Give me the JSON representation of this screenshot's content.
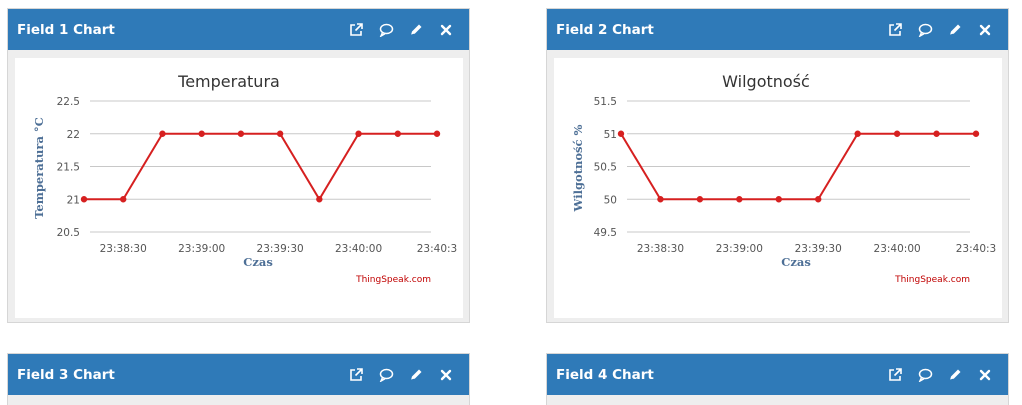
{
  "panels": [
    {
      "title": "Field 1 Chart",
      "chart_data": {
        "type": "line",
        "title": "Temperatura",
        "xlabel": "Czas",
        "ylabel": "Temperatura °C",
        "x": [
          "23:38:15",
          "23:38:30",
          "23:38:45",
          "23:39:00",
          "23:39:15",
          "23:39:30",
          "23:39:45",
          "23:40:00",
          "23:40:15",
          "23:40:30"
        ],
        "y": [
          21,
          21,
          22,
          22,
          22,
          22,
          21,
          22,
          22,
          22
        ],
        "ylim": [
          20.5,
          22.5
        ],
        "yticks": [
          "22.5",
          "22",
          "21.5",
          "21",
          "20.5"
        ],
        "xticks": [
          "23:38:30",
          "23:39:00",
          "23:39:30",
          "23:40:00",
          "23:40:3"
        ],
        "grid": true,
        "color": "#d62020",
        "credit": "ThingSpeak.com"
      }
    },
    {
      "title": "Field 2 Chart",
      "chart_data": {
        "type": "line",
        "title": "Wilgotność",
        "xlabel": "Czas",
        "ylabel": "Wilgotność %",
        "x": [
          "23:38:15",
          "23:38:30",
          "23:38:45",
          "23:39:00",
          "23:39:15",
          "23:39:30",
          "23:39:45",
          "23:40:00",
          "23:40:15",
          "23:40:30"
        ],
        "y": [
          51,
          50,
          50,
          50,
          50,
          50,
          51,
          51,
          51,
          51
        ],
        "ylim": [
          49.5,
          51.5
        ],
        "yticks": [
          "51.5",
          "51",
          "50.5",
          "50",
          "49.5"
        ],
        "xticks": [
          "23:38:30",
          "23:39:00",
          "23:39:30",
          "23:40:00",
          "23:40:3"
        ],
        "grid": true,
        "color": "#d62020",
        "credit": "ThingSpeak.com"
      }
    },
    {
      "title": "Field 3 Chart"
    },
    {
      "title": "Field 4 Chart"
    }
  ],
  "header_icons": [
    "external-link-icon",
    "comment-icon",
    "pencil-icon",
    "close-icon"
  ],
  "colors": {
    "header": "#2f7ab8",
    "line": "#d62020",
    "axis_label": "#4d6f96",
    "credit": "#c00000"
  }
}
